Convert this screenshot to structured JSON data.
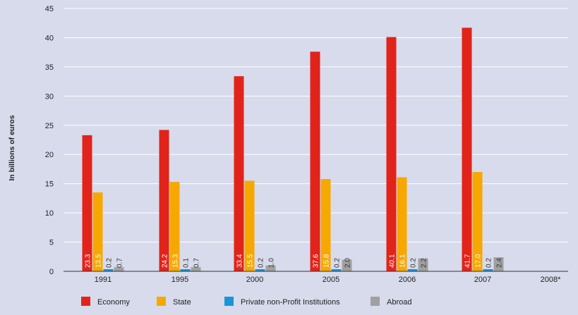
{
  "chart_data": {
    "type": "bar",
    "title": "",
    "xlabel": "",
    "ylabel": "In billions of euros",
    "ylim": [
      0,
      45
    ],
    "yticks": [
      0,
      5,
      10,
      15,
      20,
      25,
      30,
      35,
      40,
      45
    ],
    "grid": true,
    "legend_position": "bottom",
    "categories": [
      "1991",
      "1995",
      "2000",
      "2005",
      "2006",
      "2007",
      "2008*"
    ],
    "series": [
      {
        "name": "Economy",
        "color": "#e2231a",
        "values": [
          23.3,
          24.2,
          33.4,
          37.6,
          40.1,
          41.7,
          null
        ]
      },
      {
        "name": "State",
        "color": "#f7a800",
        "values": [
          13.5,
          15.3,
          15.5,
          15.8,
          16.1,
          17.0,
          null
        ]
      },
      {
        "name": "Private non-Profit Institutions",
        "color": "#1a95d6",
        "values": [
          0.2,
          0.1,
          0.2,
          0.2,
          0.2,
          0.2,
          null
        ]
      },
      {
        "name": "Abroad",
        "color": "#a0a0a0",
        "values": [
          0.7,
          0.7,
          1.0,
          2.0,
          2.2,
          2.4,
          null
        ]
      }
    ]
  }
}
